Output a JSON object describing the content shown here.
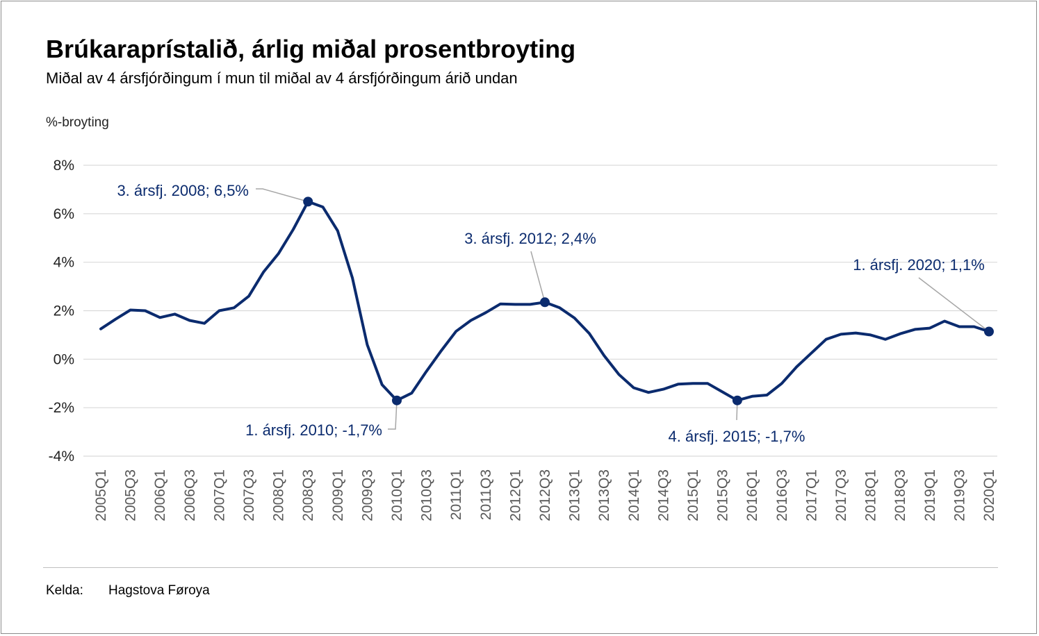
{
  "title": "Brúkaraprístalið, árlig miðal prosentbroyting",
  "subtitle": "Miðal av 4 ársfjórðingum í mun til miðal av 4 ársfjórðingum árið undan",
  "source": {
    "label": "Kelda:",
    "value": "Hagstova Føroya"
  },
  "colors": {
    "line": "#0b2b6e",
    "annotation_text": "#0b2b6e",
    "leader": "#a6a6a6",
    "grid": "#d9d9d9",
    "axis_text": "#595959"
  },
  "chart_data": {
    "type": "line",
    "ylabel": "%-broyting",
    "ylim": [
      -4,
      8
    ],
    "yticks": [
      8,
      6,
      4,
      2,
      0,
      -2,
      -4
    ],
    "ytick_labels": [
      "8%",
      "6%",
      "4%",
      "2%",
      "0%",
      "-2%",
      "-4%"
    ],
    "grid": true,
    "xtick_labels": [
      "2005Q1",
      "2005Q3",
      "2006Q1",
      "2006Q3",
      "2007Q1",
      "2007Q3",
      "2008Q1",
      "2008Q3",
      "2009Q1",
      "2009Q3",
      "2010Q1",
      "2010Q3",
      "2011Q1",
      "2011Q3",
      "2012Q1",
      "2012Q3",
      "2013Q1",
      "2013Q3",
      "2014Q1",
      "2014Q3",
      "2015Q1",
      "2015Q3",
      "2016Q1",
      "2016Q3",
      "2017Q1",
      "2017Q3",
      "2018Q1",
      "2018Q3",
      "2019Q1",
      "2019Q3",
      "2020Q1"
    ],
    "x": [
      "2005Q1",
      "2005Q2",
      "2005Q3",
      "2005Q4",
      "2006Q1",
      "2006Q2",
      "2006Q3",
      "2006Q4",
      "2007Q1",
      "2007Q2",
      "2007Q3",
      "2007Q4",
      "2008Q1",
      "2008Q2",
      "2008Q3",
      "2008Q4",
      "2009Q1",
      "2009Q2",
      "2009Q3",
      "2009Q4",
      "2010Q1",
      "2010Q2",
      "2010Q3",
      "2010Q4",
      "2011Q1",
      "2011Q2",
      "2011Q3",
      "2011Q4",
      "2012Q1",
      "2012Q2",
      "2012Q3",
      "2012Q4",
      "2013Q1",
      "2013Q2",
      "2013Q3",
      "2013Q4",
      "2014Q1",
      "2014Q2",
      "2014Q3",
      "2014Q4",
      "2015Q1",
      "2015Q2",
      "2015Q3",
      "2015Q4",
      "2016Q1",
      "2016Q2",
      "2016Q3",
      "2016Q4",
      "2017Q1",
      "2017Q2",
      "2017Q3",
      "2017Q4",
      "2018Q1",
      "2018Q2",
      "2018Q3",
      "2018Q4",
      "2019Q1",
      "2019Q2",
      "2019Q3",
      "2019Q4",
      "2020Q1"
    ],
    "series": [
      {
        "values": [
          1.25,
          1.65,
          2.03,
          2.0,
          1.72,
          1.86,
          1.6,
          1.48,
          2.0,
          2.12,
          2.6,
          3.6,
          4.35,
          5.35,
          6.5,
          6.28,
          5.3,
          3.35,
          0.6,
          -1.05,
          -1.7,
          -1.4,
          -0.5,
          0.35,
          1.15,
          1.6,
          1.92,
          2.28,
          2.26,
          2.26,
          2.35,
          2.12,
          1.7,
          1.06,
          0.15,
          -0.63,
          -1.18,
          -1.37,
          -1.24,
          -1.03,
          -1.0,
          -1.0,
          -1.35,
          -1.7,
          -1.53,
          -1.48,
          -1.0,
          -0.32,
          0.25,
          0.82,
          1.03,
          1.08,
          1.0,
          0.82,
          1.05,
          1.23,
          1.28,
          1.57,
          1.34,
          1.34,
          1.14
        ]
      }
    ],
    "annotations": [
      {
        "x": "2008Q3",
        "text": "3. ársfj. 2008; 6,5%"
      },
      {
        "x": "2010Q1",
        "text": "1. ársfj. 2010; -1,7%"
      },
      {
        "x": "2012Q3",
        "text": "3. ársfj. 2012; 2,4%"
      },
      {
        "x": "2015Q4",
        "text": "4. ársfj. 2015; -1,7%"
      },
      {
        "x": "2020Q1",
        "text": "1. ársfj. 2020; 1,1%"
      }
    ]
  }
}
